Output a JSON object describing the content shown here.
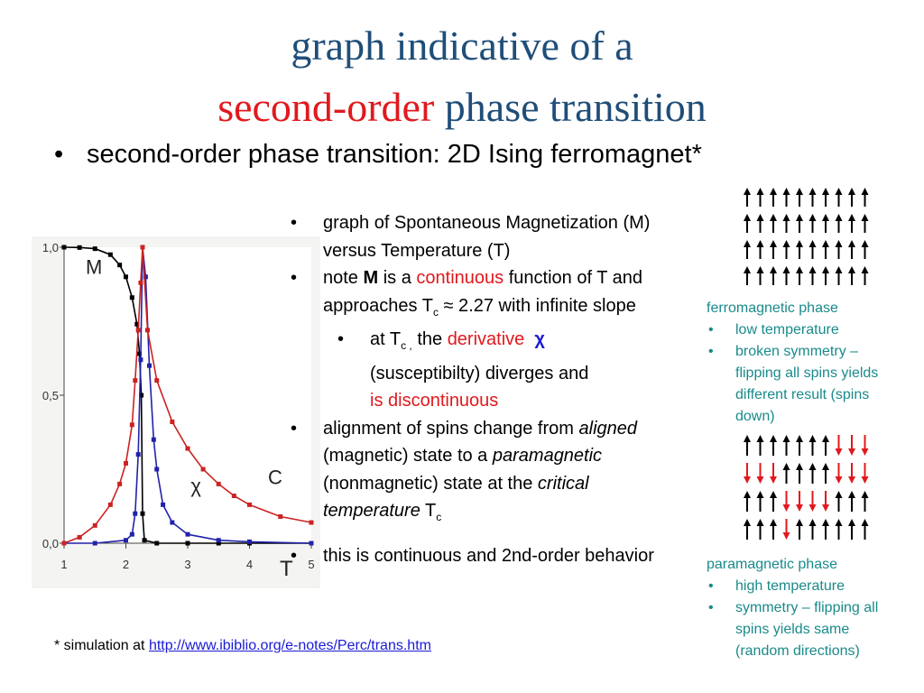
{
  "title": {
    "line1": "graph indicative of a",
    "line2_red": "second-order",
    "line2_rest": " phase transition"
  },
  "main_bullet": "second-order phase transition:  2D Ising ferromagnet*",
  "bullet_char": "•",
  "bullets": {
    "b1": "graph of Spontaneous Magnetization (M) versus Temperature (T)",
    "b2_a": "note ",
    "b2_M": "M",
    "b2_b": " is a ",
    "b2_cont": "continuous",
    "b2_c": " function of T and approaches  T",
    "b2_sub": "c",
    "b2_d": " ≈ 2.27 with infinite slope",
    "b3_a": "at T",
    "b3_sub": "c ,",
    "b3_b": " the ",
    "b3_deriv": "derivative",
    "b3_chi": "χ",
    "b3_c": "(susceptibilty) diverges and",
    "b3_disc": "is discontinuous",
    "b4_a": "alignment of spins change from ",
    "b4_aligned": "aligned",
    "b4_b": " (magnetic) state to a ",
    "b4_para": "paramagnetic",
    "b4_c": " (nonmagnetic) state at the ",
    "b4_crit": "critical temperature",
    "b4_d": " T",
    "b4_sub": "c",
    "b5": "this is continuous and 2nd-order behavior"
  },
  "ferro": {
    "heading": "ferromagnetic phase",
    "items": [
      "low temperature",
      "broken symmetry – flipping all  spins yields different result (spins down)"
    ]
  },
  "para": {
    "heading": "paramagnetic phase",
    "items": [
      "high temperature",
      "symmetry – flipping all  spins  yields same  (random directions)"
    ]
  },
  "footnote": {
    "prefix": "* simulation at ",
    "link": "http://www.ibiblio.org/e-notes/Perc/trans.htm"
  },
  "spin_grids": {
    "ferro": [
      "uuuuuuuuuu",
      "uuuuuuuuuu",
      "uuuuuuuuuu",
      "uuuuuuuuuu"
    ],
    "para": [
      "uuuuuuuddd",
      "ddduuuuddd",
      "uuudddduuu",
      "uuuduuuuuu"
    ]
  },
  "colors": {
    "title_blue": "#1f4e79",
    "accent_red": "#e0191e",
    "side_teal": "#1a8a8a",
    "chi_blue": "#1a1ad6",
    "spin_up": "#000000",
    "spin_down": "#e0191e"
  },
  "chart_data": {
    "type": "line",
    "xlim": [
      1,
      5
    ],
    "ylim": [
      0,
      1
    ],
    "x_ticks": [
      "1",
      "2",
      "3",
      "4",
      "5"
    ],
    "y_ticks": [
      "0,0",
      "0,5",
      "1,0"
    ],
    "xlabel": "T",
    "curve_labels": [
      "M",
      "χ",
      "C"
    ],
    "series": [
      {
        "name": "M",
        "color": "#000000",
        "points": [
          [
            1.0,
            1.0
          ],
          [
            1.25,
            0.999
          ],
          [
            1.5,
            0.995
          ],
          [
            1.75,
            0.975
          ],
          [
            1.9,
            0.94
          ],
          [
            2.0,
            0.9
          ],
          [
            2.1,
            0.83
          ],
          [
            2.18,
            0.74
          ],
          [
            2.22,
            0.64
          ],
          [
            2.25,
            0.5
          ],
          [
            2.27,
            0.1
          ],
          [
            2.3,
            0.01
          ],
          [
            2.5,
            0.0
          ],
          [
            3.0,
            0.0
          ],
          [
            3.5,
            0.0
          ],
          [
            4.0,
            0.0
          ],
          [
            5.0,
            0.0
          ]
        ]
      },
      {
        "name": "χ",
        "color": "#2222aa",
        "points": [
          [
            1.0,
            0.0
          ],
          [
            1.5,
            0.0
          ],
          [
            2.0,
            0.01
          ],
          [
            2.1,
            0.03
          ],
          [
            2.15,
            0.1
          ],
          [
            2.2,
            0.3
          ],
          [
            2.24,
            0.62
          ],
          [
            2.27,
            1.0
          ],
          [
            2.32,
            0.9
          ],
          [
            2.38,
            0.6
          ],
          [
            2.45,
            0.35
          ],
          [
            2.5,
            0.25
          ],
          [
            2.6,
            0.13
          ],
          [
            2.75,
            0.07
          ],
          [
            3.0,
            0.03
          ],
          [
            3.5,
            0.01
          ],
          [
            4.0,
            0.005
          ],
          [
            5.0,
            0.0
          ]
        ]
      },
      {
        "name": "C",
        "color": "#cc2222",
        "points": [
          [
            1.0,
            0.0
          ],
          [
            1.25,
            0.02
          ],
          [
            1.5,
            0.06
          ],
          [
            1.75,
            0.13
          ],
          [
            1.9,
            0.2
          ],
          [
            2.0,
            0.27
          ],
          [
            2.1,
            0.4
          ],
          [
            2.15,
            0.55
          ],
          [
            2.2,
            0.72
          ],
          [
            2.24,
            0.88
          ],
          [
            2.27,
            1.0
          ],
          [
            2.35,
            0.72
          ],
          [
            2.5,
            0.55
          ],
          [
            2.75,
            0.41
          ],
          [
            3.0,
            0.32
          ],
          [
            3.25,
            0.25
          ],
          [
            3.5,
            0.2
          ],
          [
            3.75,
            0.16
          ],
          [
            4.0,
            0.13
          ],
          [
            4.5,
            0.09
          ],
          [
            5.0,
            0.07
          ]
        ]
      }
    ]
  }
}
